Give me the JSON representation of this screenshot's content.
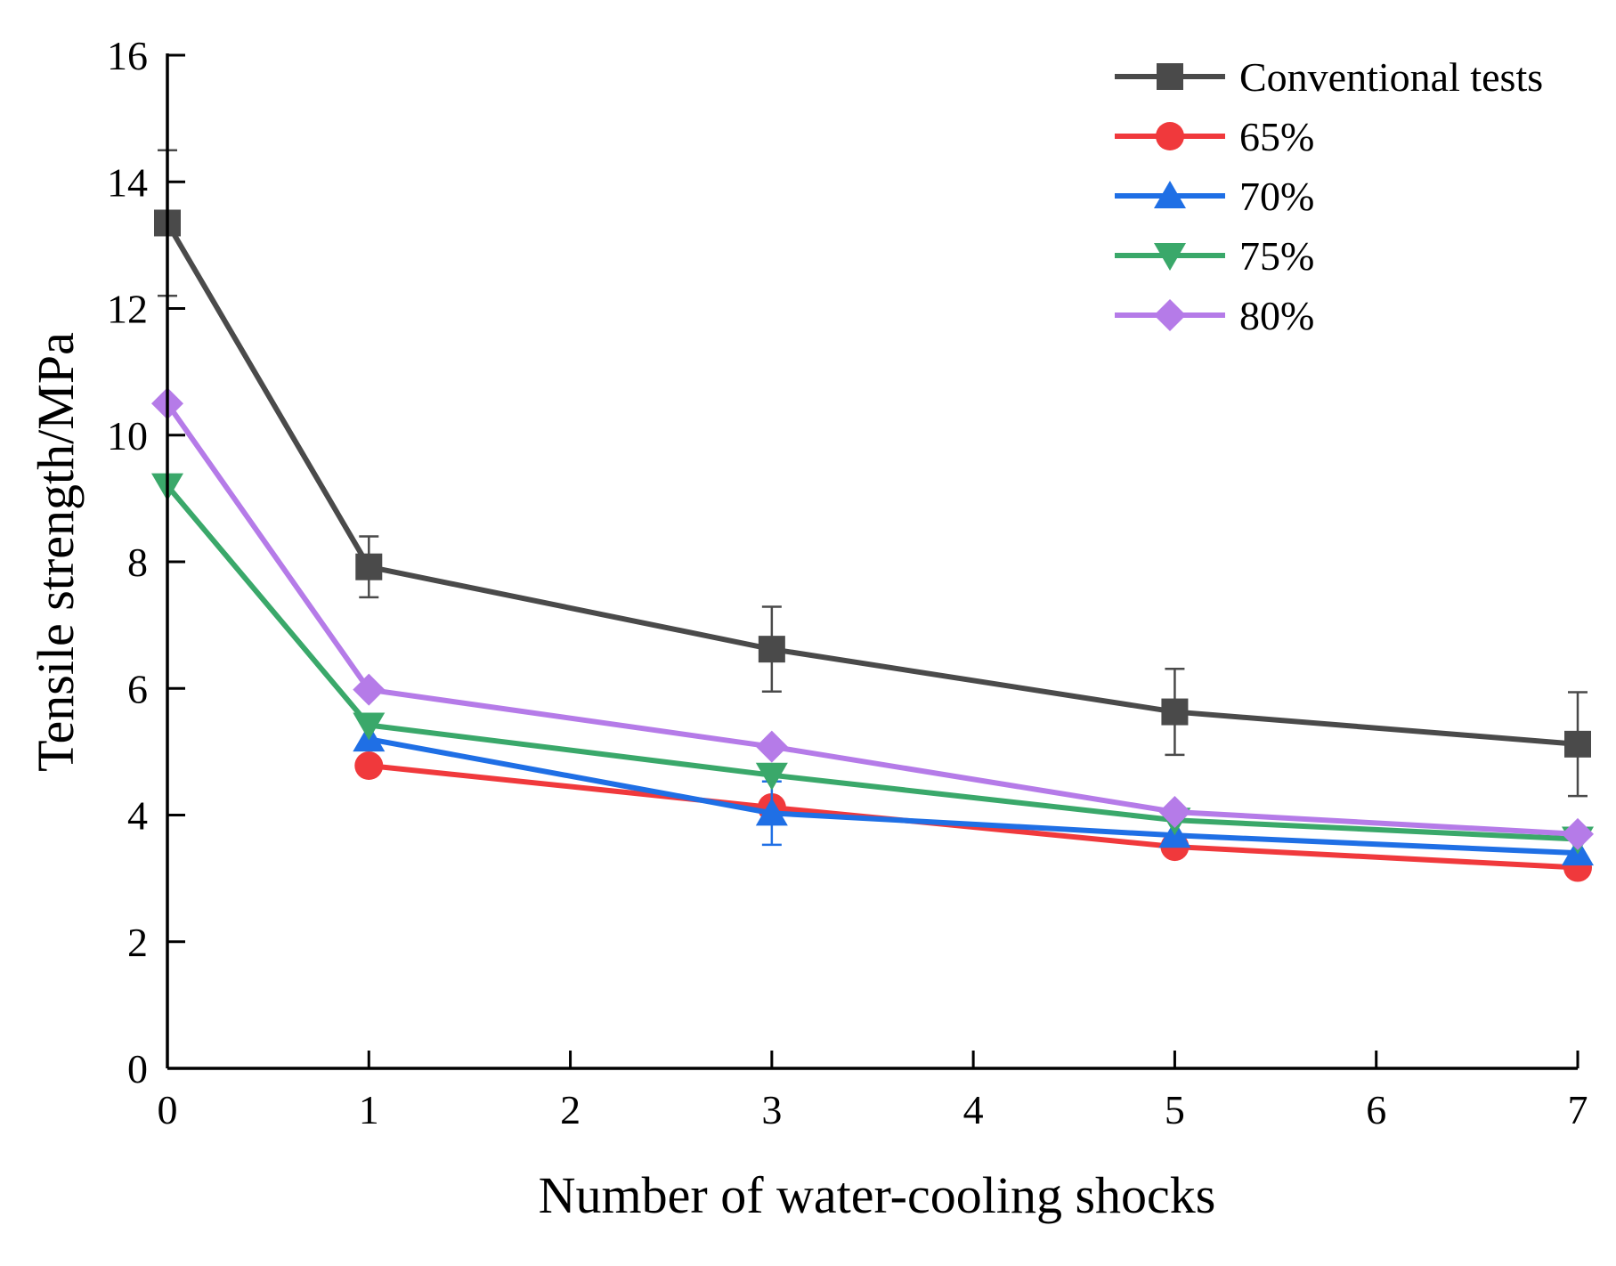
{
  "chart_data": {
    "type": "line",
    "title": "",
    "xlabel": "Number of water-cooling shocks",
    "ylabel": "Tensile strength/MPa",
    "xlim": [
      0,
      7
    ],
    "ylim": [
      0,
      16
    ],
    "x_ticks": [
      0,
      1,
      2,
      3,
      4,
      5,
      6,
      7
    ],
    "y_ticks": [
      0,
      2,
      4,
      6,
      8,
      10,
      12,
      14,
      16
    ],
    "x": [
      0,
      1,
      3,
      5,
      7
    ],
    "legend_position": "top-right",
    "series": [
      {
        "name": "Conventional tests",
        "color": "#4a4a4a",
        "marker": "square",
        "values": [
          13.35,
          7.92,
          6.62,
          5.63,
          5.12
        ],
        "error": [
          1.15,
          0.48,
          0.67,
          0.68,
          0.82
        ]
      },
      {
        "name": "65%",
        "color": "#f0393c",
        "marker": "circle",
        "values": [
          null,
          4.78,
          4.12,
          3.5,
          3.17
        ],
        "error": [
          0,
          0,
          0,
          0,
          0
        ]
      },
      {
        "name": "70%",
        "color": "#1f6fe5",
        "marker": "triangle-up",
        "values": [
          null,
          5.2,
          4.03,
          3.68,
          3.4
        ],
        "error": [
          0,
          0,
          0.5,
          0,
          0
        ]
      },
      {
        "name": "75%",
        "color": "#3aa86a",
        "marker": "triangle-down",
        "values": [
          9.2,
          5.42,
          4.63,
          3.92,
          3.62
        ],
        "error": [
          0,
          0,
          0,
          0,
          0
        ]
      },
      {
        "name": "80%",
        "color": "#b57be8",
        "marker": "diamond",
        "values": [
          10.5,
          5.98,
          5.08,
          4.05,
          3.7
        ],
        "error": [
          0,
          0,
          0,
          0,
          0
        ]
      }
    ]
  }
}
